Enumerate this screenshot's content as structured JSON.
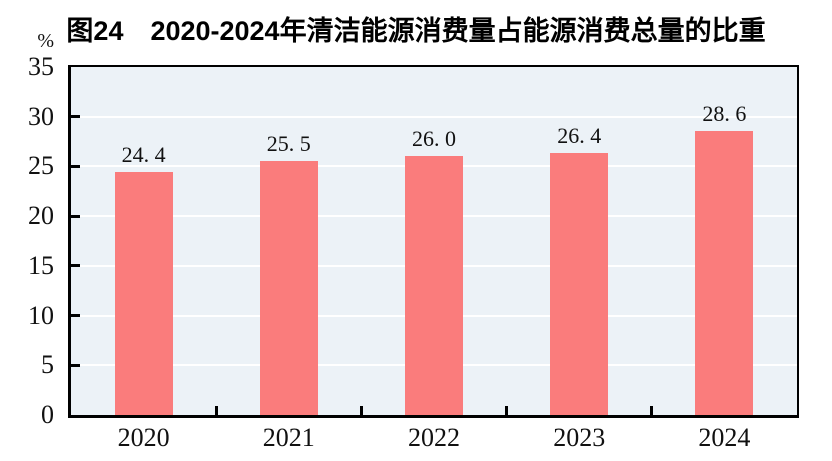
{
  "figure": {
    "title": "图24　2020-2024年清洁能源消费量占能源消费总量的比重",
    "unit_label": "%"
  },
  "chart_data": {
    "type": "bar",
    "title": "图24　2020-2024年清洁能源消费量占能源消费总量的比重",
    "unit": "%",
    "categories": [
      "2020",
      "2021",
      "2022",
      "2023",
      "2024"
    ],
    "values": [
      24.4,
      25.5,
      26.0,
      26.4,
      28.6
    ],
    "value_labels": [
      "24. 4",
      "25. 5",
      "26. 0",
      "26. 4",
      "28. 6"
    ],
    "xlabel": "",
    "ylabel": "%",
    "ylim": [
      0,
      35
    ],
    "yticks": [
      0,
      5,
      10,
      15,
      20,
      25,
      30,
      35
    ],
    "ytick_labels": [
      "0",
      "5",
      "10",
      "15",
      "20",
      "25",
      "30",
      "35"
    ],
    "grid": true,
    "legend_position": "none",
    "colors": {
      "bar": "#FA7C7C",
      "plot_background": "#ECF2F7",
      "gridline": "#FFFFFF",
      "axis": "#000000",
      "text": "#111111"
    }
  }
}
